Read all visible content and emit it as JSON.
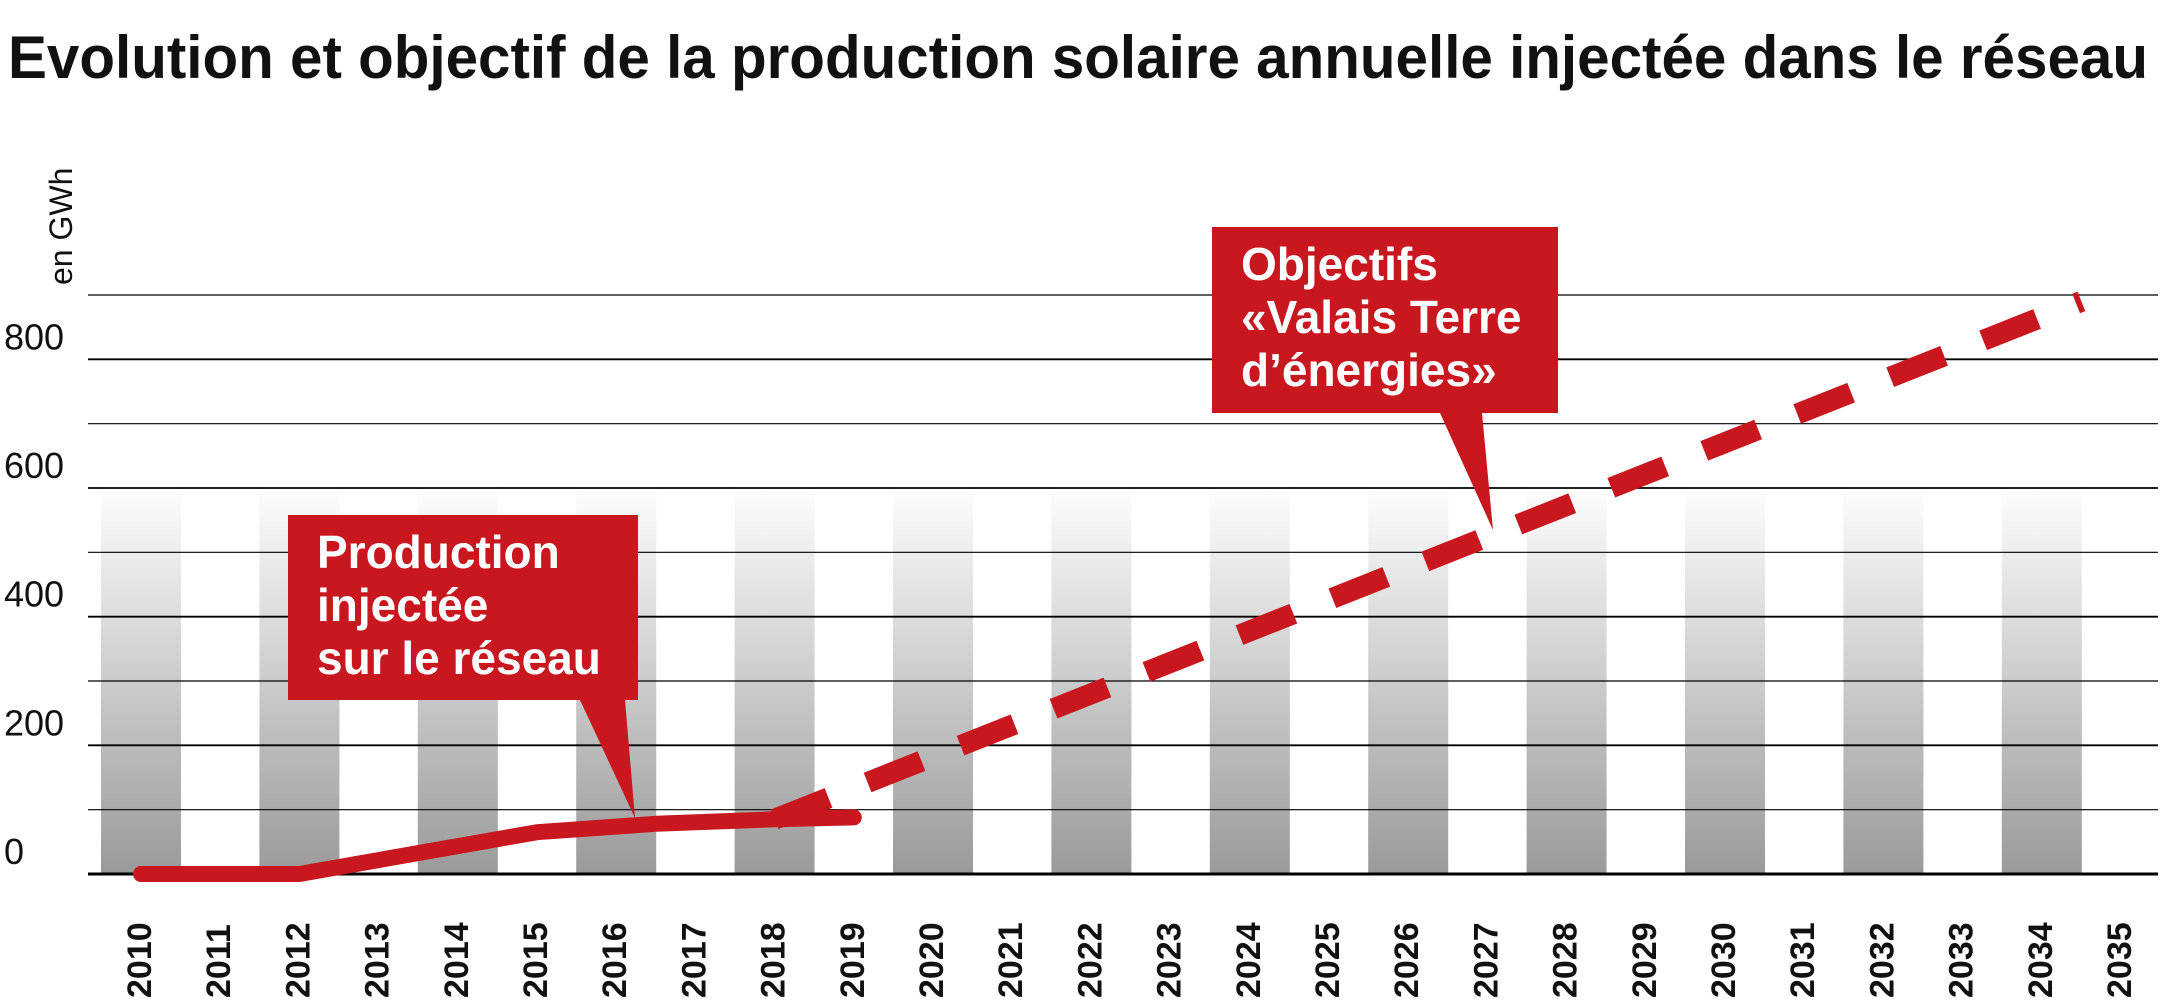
{
  "chart_data": {
    "type": "line",
    "title": "Evolution et objectif de la production solaire annuelle injectée dans le réseau",
    "ylabel": "en GWh",
    "xlabel": "",
    "ylim": [
      0,
      900
    ],
    "yticks": [
      0,
      200,
      400,
      600,
      800
    ],
    "categories": [
      "2010",
      "2011",
      "2012",
      "2013",
      "2014",
      "2015",
      "2016",
      "2017",
      "2018",
      "2019",
      "2020",
      "2021",
      "2022",
      "2023",
      "2024",
      "2025",
      "2026",
      "2027",
      "2028",
      "2029",
      "2030",
      "2031",
      "2032",
      "2033",
      "2034",
      "2035"
    ],
    "series": [
      {
        "name": "Production injectée sur le réseau",
        "style": "solid",
        "points": [
          {
            "x": 2010,
            "y": 0
          },
          {
            "x": 2012,
            "y": 0
          },
          {
            "x": 2015,
            "y": 65
          },
          {
            "x": 2016.5,
            "y": 78
          },
          {
            "x": 2018,
            "y": 85
          },
          {
            "x": 2019,
            "y": 88
          }
        ]
      },
      {
        "name": "Objectifs «Valais Terre d’énergies»",
        "style": "dashed",
        "points": [
          {
            "x": 2018,
            "y": 85
          },
          {
            "x": 2034.5,
            "y": 890
          }
        ]
      }
    ],
    "annotations": [
      {
        "lines": [
          "Production",
          "injectée",
          "sur le réseau"
        ]
      },
      {
        "lines": [
          "Objectifs",
          "«Valais Terre",
          "d’énergies»"
        ]
      }
    ],
    "grid": true,
    "colors": {
      "series": "#c8171e",
      "callout": "#c8171e",
      "callout_text": "#ffffff",
      "gridline": "#000000",
      "band_top": "#ffffff",
      "band_bottom": "#9a9a9a"
    }
  }
}
